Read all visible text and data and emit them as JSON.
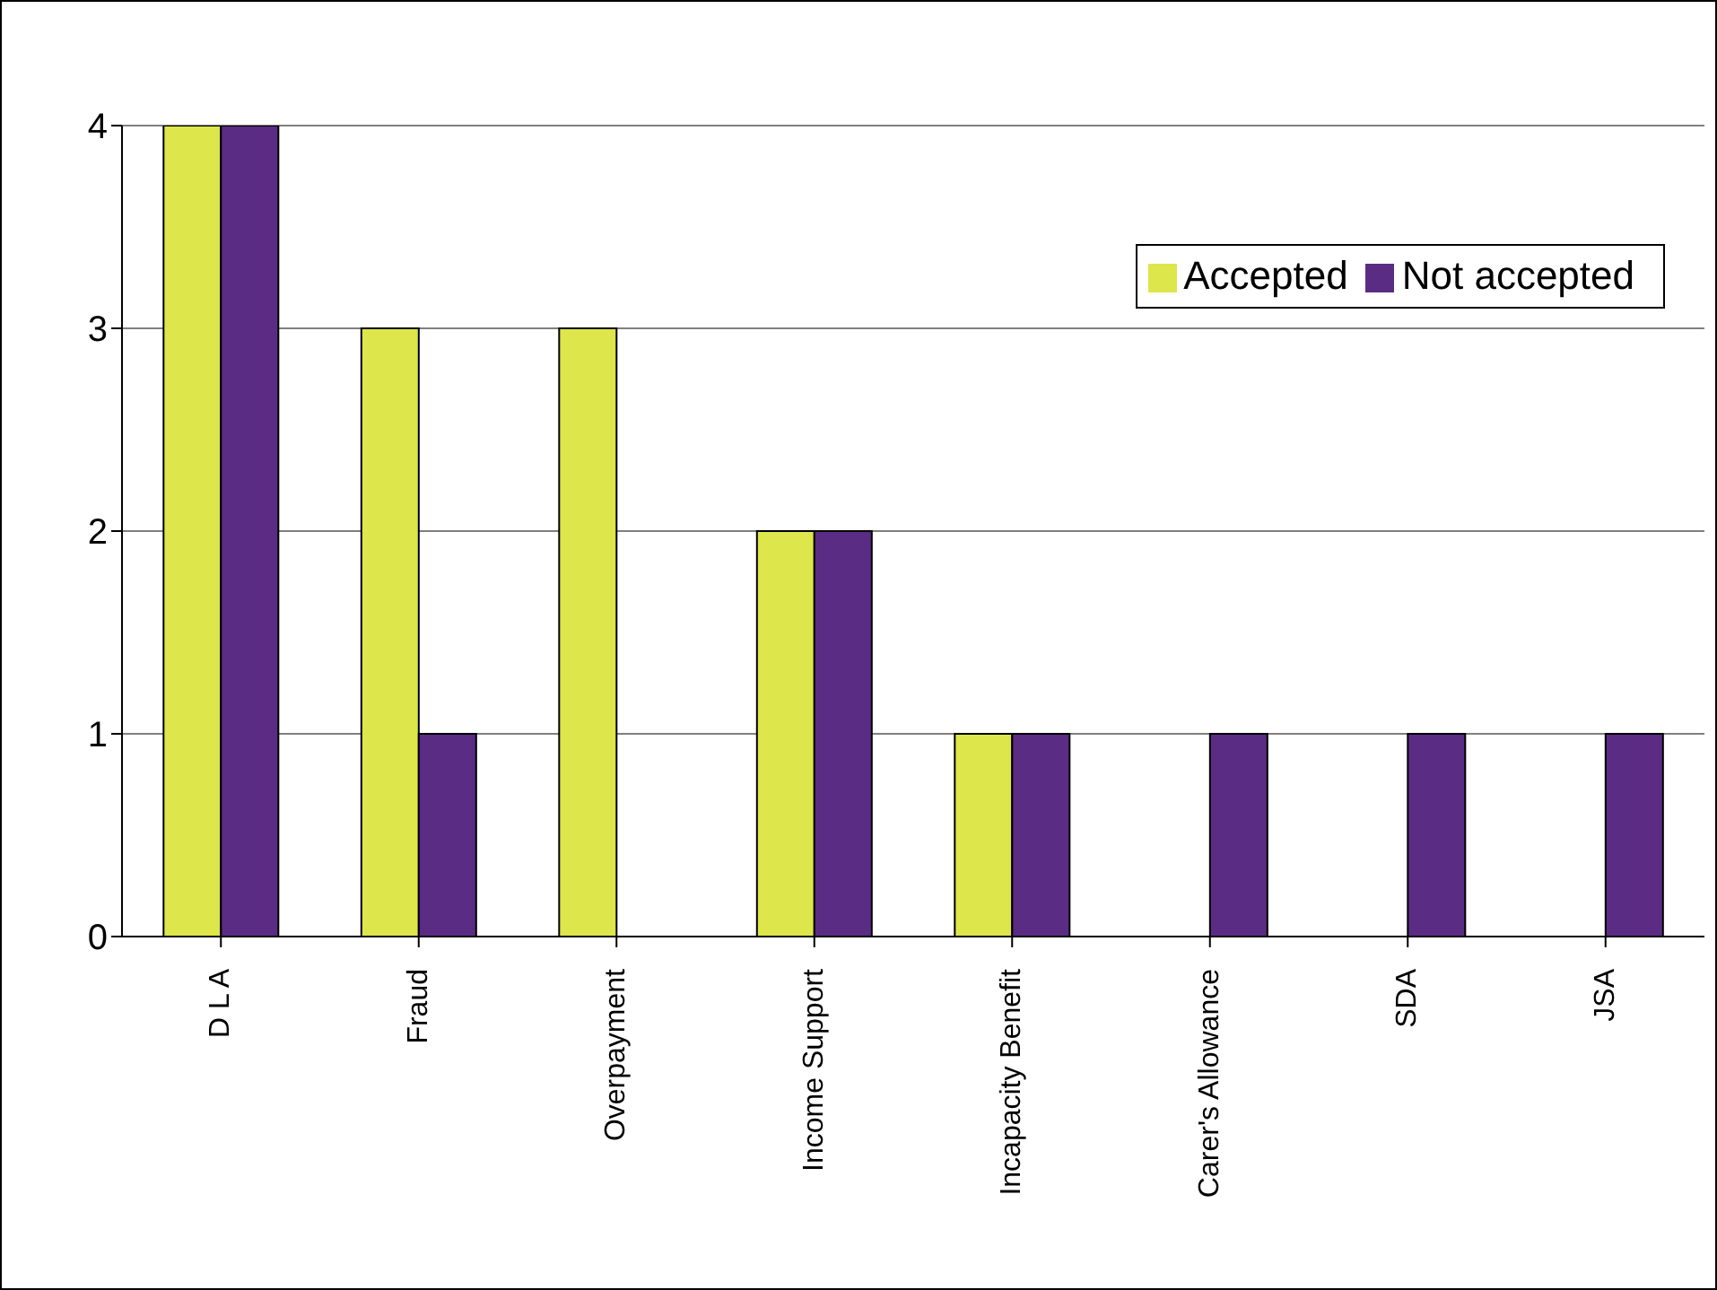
{
  "chart_data": {
    "type": "bar",
    "categories": [
      "D L A",
      "Fraud",
      "Overpayment",
      "Income Support",
      "Incapacity Benefit",
      "Carer's Allowance",
      "SDA",
      "JSA"
    ],
    "series": [
      {
        "name": "Accepted",
        "color": "#dde64a",
        "values": [
          4,
          3,
          3,
          2,
          1,
          0,
          0,
          0
        ]
      },
      {
        "name": "Not accepted",
        "color": "#5b2c83",
        "values": [
          4,
          1,
          0,
          2,
          1,
          1,
          1,
          1
        ]
      }
    ],
    "ylim": [
      0,
      4
    ],
    "yticks": [
      0,
      1,
      2,
      3,
      4
    ],
    "grid": "y",
    "legend": "top right"
  }
}
